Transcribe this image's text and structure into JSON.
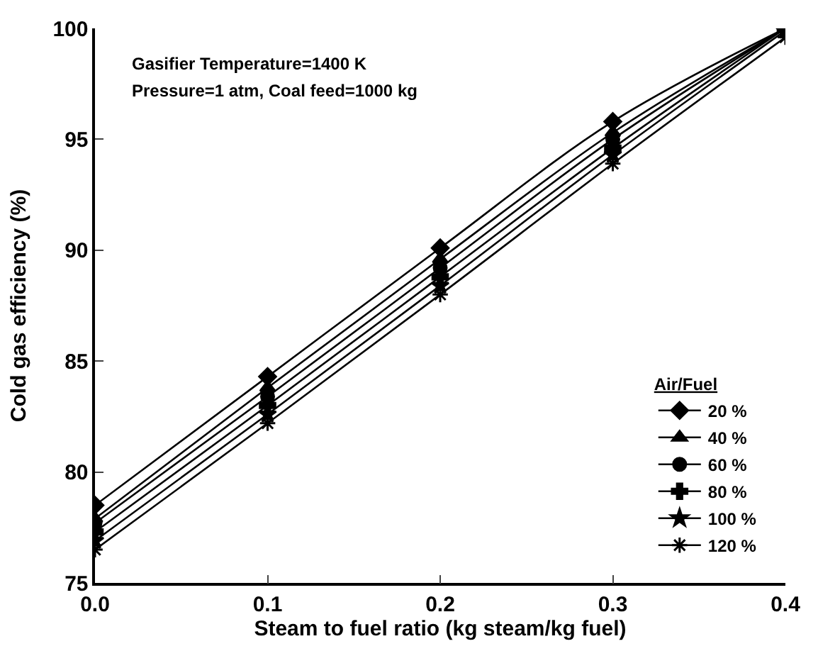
{
  "chart_data": {
    "type": "line",
    "xlabel": "Steam to fuel ratio (kg steam/kg fuel)",
    "ylabel": "Cold gas efficiency (%)",
    "legend_title": "Air/Fuel",
    "legend": "bottom right",
    "annotations": [
      "Gasifier Temperature=1400 K",
      "Pressure=1 atm, Coal feed=1000 kg"
    ],
    "x": [
      0.0,
      0.1,
      0.2,
      0.3,
      0.4
    ],
    "xlim": [
      0.0,
      0.4
    ],
    "xticks": [
      {
        "value": 0.0,
        "label": "0.0"
      },
      0.1,
      0.2,
      0.3,
      0.4
    ],
    "ylim": [
      75,
      100
    ],
    "yticks": [
      75,
      80,
      85,
      90,
      95,
      100
    ],
    "series": [
      {
        "name": "20 %",
        "color": "#000000",
        "marker": "diamond",
        "values": [
          78.5,
          84.3,
          90.1,
          95.8,
          100
        ]
      },
      {
        "name": "40 %",
        "color": "#000000",
        "marker": "triangle",
        "values": [
          77.9,
          83.8,
          89.6,
          95.3,
          100
        ]
      },
      {
        "name": "60 %",
        "color": "#000000",
        "marker": "circle",
        "values": [
          77.7,
          83.4,
          89.2,
          95.0,
          100
        ]
      },
      {
        "name": "80 %",
        "color": "#000000",
        "marker": "cross",
        "values": [
          77.3,
          83.0,
          88.8,
          94.6,
          100
        ]
      },
      {
        "name": "100 %",
        "color": "#000000",
        "marker": "star",
        "values": [
          76.9,
          82.6,
          88.4,
          94.3,
          99.9
        ]
      },
      {
        "name": "120 %",
        "color": "#000000",
        "marker": "cross",
        "values": [
          76.5,
          82.2,
          88.0,
          93.9,
          99.6
        ]
      }
    ]
  }
}
